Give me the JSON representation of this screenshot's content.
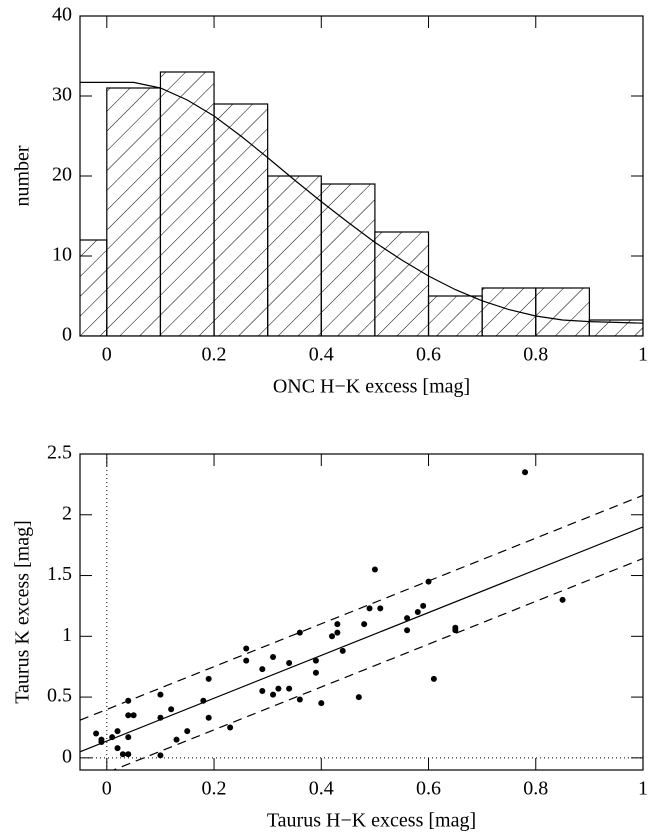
{
  "chart_data": [
    {
      "type": "histogram",
      "xlabel": "ONC H−K excess [mag]",
      "ylabel": "number",
      "bins": [
        -0.1,
        0,
        0.1,
        0.2,
        0.3,
        0.4,
        0.5,
        0.6,
        0.7,
        0.8,
        0.9,
        1.0
      ],
      "counts": [
        12,
        31,
        33,
        29,
        20,
        19,
        13,
        5,
        6,
        6,
        2
      ],
      "line": {
        "x": [
          -0.05,
          0,
          0.05,
          0.1,
          0.15,
          0.2,
          0.25,
          0.3,
          0.35,
          0.4,
          0.45,
          0.5,
          0.55,
          0.6,
          0.65,
          0.7,
          0.75,
          0.8,
          0.85,
          0.9,
          0.95,
          1.0
        ],
        "values": [
          31.7,
          31.7,
          31.7,
          31,
          29.5,
          27.5,
          25,
          22.3,
          19.5,
          16.8,
          14.2,
          11.7,
          9.5,
          7.5,
          5.8,
          4.4,
          3.3,
          2.5,
          2.0,
          1.8,
          1.7,
          1.6
        ]
      },
      "xlim": [
        -0.05,
        1
      ],
      "ylim": [
        0,
        40
      ],
      "xticks": [
        0,
        0.2,
        0.4,
        0.6,
        0.8,
        1
      ],
      "yticks": [
        0,
        10,
        20,
        30,
        40
      ],
      "color": "#000000",
      "hatch": true
    },
    {
      "type": "scatter",
      "xlabel": "Taurus H−K excess [mag]",
      "ylabel": "Taurus K excess [mag]",
      "x": [
        -0.02,
        -0.01,
        -0.01,
        0.01,
        0.02,
        0.02,
        0.03,
        0.04,
        0.04,
        0.04,
        0.04,
        0.05,
        0.1,
        0.1,
        0.1,
        0.12,
        0.13,
        0.15,
        0.18,
        0.19,
        0.19,
        0.23,
        0.26,
        0.26,
        0.29,
        0.29,
        0.31,
        0.31,
        0.32,
        0.34,
        0.34,
        0.36,
        0.36,
        0.39,
        0.39,
        0.4,
        0.42,
        0.43,
        0.43,
        0.44,
        0.47,
        0.48,
        0.49,
        0.5,
        0.51,
        0.56,
        0.56,
        0.58,
        0.59,
        0.6,
        0.61,
        0.65,
        0.65,
        0.78,
        0.85
      ],
      "values": [
        0.2,
        0.15,
        0.13,
        0.17,
        0.22,
        0.08,
        0.03,
        0.03,
        0.17,
        0.35,
        0.47,
        0.35,
        0.52,
        0.33,
        0.02,
        0.4,
        0.15,
        0.22,
        0.47,
        0.65,
        0.33,
        0.25,
        0.9,
        0.8,
        0.73,
        0.55,
        0.52,
        0.83,
        0.57,
        0.78,
        0.57,
        1.03,
        0.48,
        0.8,
        0.7,
        0.45,
        1.0,
        1.1,
        1.03,
        0.88,
        0.5,
        1.1,
        1.23,
        1.55,
        1.23,
        1.15,
        1.05,
        1.2,
        1.25,
        1.45,
        0.65,
        1.05,
        1.07,
        2.35,
        1.3
      ],
      "lines": [
        {
          "style": "solid",
          "x": [
            -0.05,
            1
          ],
          "values": [
            0.05,
            1.9
          ]
        },
        {
          "style": "dashed",
          "x": [
            -0.05,
            1
          ],
          "values": [
            0.31,
            2.16
          ]
        },
        {
          "style": "dashed",
          "x": [
            -0.05,
            1
          ],
          "values": [
            -0.21,
            1.64
          ]
        }
      ],
      "reference_x": 0,
      "reference_y": 0,
      "xlim": [
        -0.05,
        1
      ],
      "ylim": [
        -0.1,
        2.5
      ],
      "xticks": [
        0,
        0.2,
        0.4,
        0.6,
        0.8,
        1
      ],
      "yticks": [
        0,
        0.5,
        1,
        1.5,
        2,
        2.5
      ],
      "color": "#000000"
    }
  ]
}
